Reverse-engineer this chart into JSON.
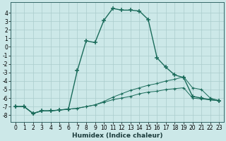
{
  "xlabel": "Humidex (Indice chaleur)",
  "bg_color": "#cce8e8",
  "grid_color": "#aacccc",
  "line_color": "#1a6b5a",
  "xlim": [
    -0.5,
    23.5
  ],
  "ylim": [
    -8.8,
    5.2
  ],
  "yticks": [
    4,
    3,
    2,
    1,
    0,
    -1,
    -2,
    -3,
    -4,
    -5,
    -6,
    -7,
    -8
  ],
  "xticks": [
    0,
    1,
    2,
    3,
    4,
    5,
    6,
    7,
    8,
    9,
    10,
    11,
    12,
    13,
    14,
    15,
    16,
    17,
    18,
    19,
    20,
    21,
    22,
    23
  ],
  "line1_x": [
    0,
    1,
    2,
    3,
    4,
    5,
    6,
    7,
    8,
    9,
    10,
    11,
    12,
    13,
    14,
    15,
    16,
    17,
    18,
    19,
    20,
    21,
    22,
    23
  ],
  "line1_y": [
    -7.0,
    -7.0,
    -7.8,
    -7.5,
    -7.5,
    -7.4,
    -7.3,
    -2.8,
    0.7,
    0.5,
    3.1,
    4.5,
    4.3,
    4.3,
    4.2,
    3.2,
    -1.3,
    -2.4,
    -3.3,
    -3.6,
    -5.8,
    -6.0,
    -6.2,
    -6.3
  ],
  "line2_x": [
    0,
    1,
    2,
    3,
    4,
    5,
    6,
    7,
    8,
    9,
    10,
    11,
    12,
    13,
    14,
    15,
    16,
    17,
    18,
    19,
    20,
    21,
    22,
    23
  ],
  "line2_y": [
    -7.0,
    -7.0,
    -7.8,
    -7.5,
    -7.5,
    -7.4,
    -7.3,
    -7.2,
    -7.0,
    -6.8,
    -6.4,
    -5.9,
    -5.5,
    -5.1,
    -4.8,
    -4.5,
    -4.3,
    -4.0,
    -3.8,
    -3.5,
    -4.8,
    -5.0,
    -6.0,
    -6.3
  ],
  "line3_x": [
    0,
    1,
    2,
    3,
    4,
    5,
    6,
    7,
    8,
    9,
    10,
    11,
    12,
    13,
    14,
    15,
    16,
    17,
    18,
    19,
    20,
    21,
    22,
    23
  ],
  "line3_y": [
    -7.0,
    -7.0,
    -7.8,
    -7.5,
    -7.5,
    -7.4,
    -7.3,
    -7.2,
    -7.0,
    -6.8,
    -6.5,
    -6.2,
    -6.0,
    -5.8,
    -5.5,
    -5.3,
    -5.2,
    -5.0,
    -4.9,
    -4.8,
    -6.0,
    -6.1,
    -6.2,
    -6.3
  ],
  "tick_fontsize": 5.5,
  "label_fontsize": 6.5
}
